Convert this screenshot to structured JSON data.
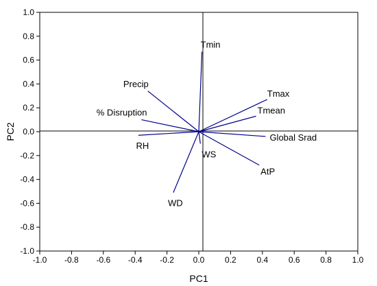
{
  "chart_data": {
    "type": "biplot",
    "xlabel": "PC1",
    "ylabel": "PC2",
    "xlim": [
      -1.0,
      1.0
    ],
    "ylim": [
      -1.0,
      1.0
    ],
    "xticks": [
      "-1.0",
      "-0.8",
      "-0.6",
      "-0.4",
      "-0.2",
      "0.0",
      "0.2",
      "0.4",
      "0.6",
      "0.8",
      "1.0"
    ],
    "yticks": [
      "1.0",
      "0.8",
      "0.6",
      "0.4",
      "0.2",
      "0.0",
      "-0.2",
      "-0.4",
      "-0.6",
      "-0.8",
      "-1.0"
    ],
    "vector_color": "#00008B",
    "vectors": [
      {
        "name": "Tmin",
        "x": 0.02,
        "y": 0.67
      },
      {
        "name": "Precip",
        "x": -0.32,
        "y": 0.34
      },
      {
        "name": "Tmax",
        "x": 0.43,
        "y": 0.27
      },
      {
        "name": "% Disruption",
        "x": -0.36,
        "y": 0.1
      },
      {
        "name": "Tmean",
        "x": 0.36,
        "y": 0.13
      },
      {
        "name": "RH",
        "x": -0.38,
        "y": -0.03
      },
      {
        "name": "Global Srad",
        "x": 0.42,
        "y": -0.04
      },
      {
        "name": "WS",
        "x": 0.01,
        "y": -0.1
      },
      {
        "name": "AtP",
        "x": 0.38,
        "y": -0.28
      },
      {
        "name": "WD",
        "x": -0.16,
        "y": -0.51
      }
    ]
  }
}
